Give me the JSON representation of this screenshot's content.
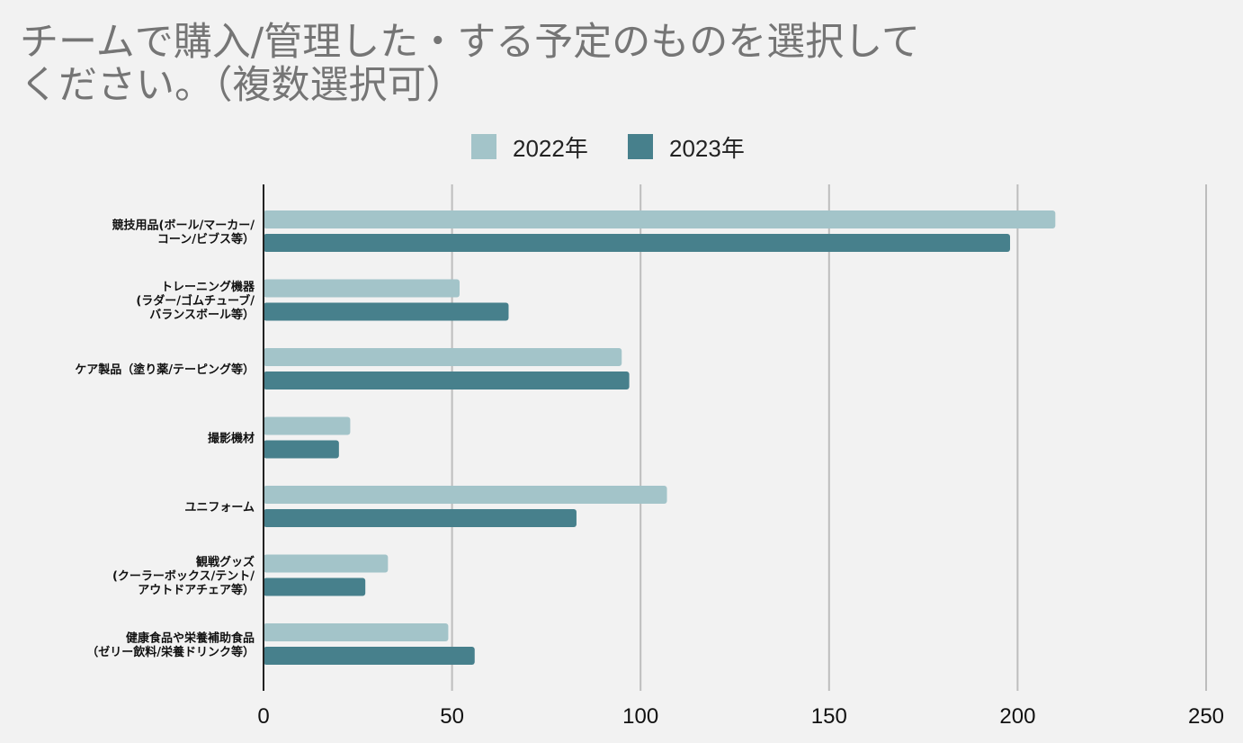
{
  "chart_data": {
    "type": "bar",
    "orientation": "horizontal",
    "title_lines": [
      "チームで購入/管理した・する予定のものを選択して",
      "ください。（複数選択可）"
    ],
    "categories": [
      [
        "競技用品(ボール/マーカー/",
        "コーン/ビブス等）"
      ],
      [
        "トレーニング機器",
        "(ラダー/ゴムチューブ/",
        "バランスボール等）"
      ],
      [
        "ケア製品（塗り薬/テーピング等）"
      ],
      [
        "撮影機材"
      ],
      [
        "ユニフォーム"
      ],
      [
        "観戦グッズ",
        "(クーラーボックス/テント/",
        "アウトドアチェア等）"
      ],
      [
        "健康食品や栄養補助食品",
        "（ゼリー飲料/栄養ドリンク等）"
      ]
    ],
    "series": [
      {
        "name": "2022年",
        "color": "#a3c4c9",
        "values": [
          210,
          52,
          95,
          23,
          107,
          33,
          49
        ]
      },
      {
        "name": "2023年",
        "color": "#47808c",
        "values": [
          198,
          65,
          97,
          20,
          83,
          27,
          56
        ]
      }
    ],
    "x_ticks": [
      "0",
      "50",
      "100",
      "150",
      "200",
      "250"
    ],
    "xlim": [
      0,
      250
    ],
    "grid": true,
    "legend_position": "top-center",
    "xlabel": "",
    "ylabel": ""
  }
}
